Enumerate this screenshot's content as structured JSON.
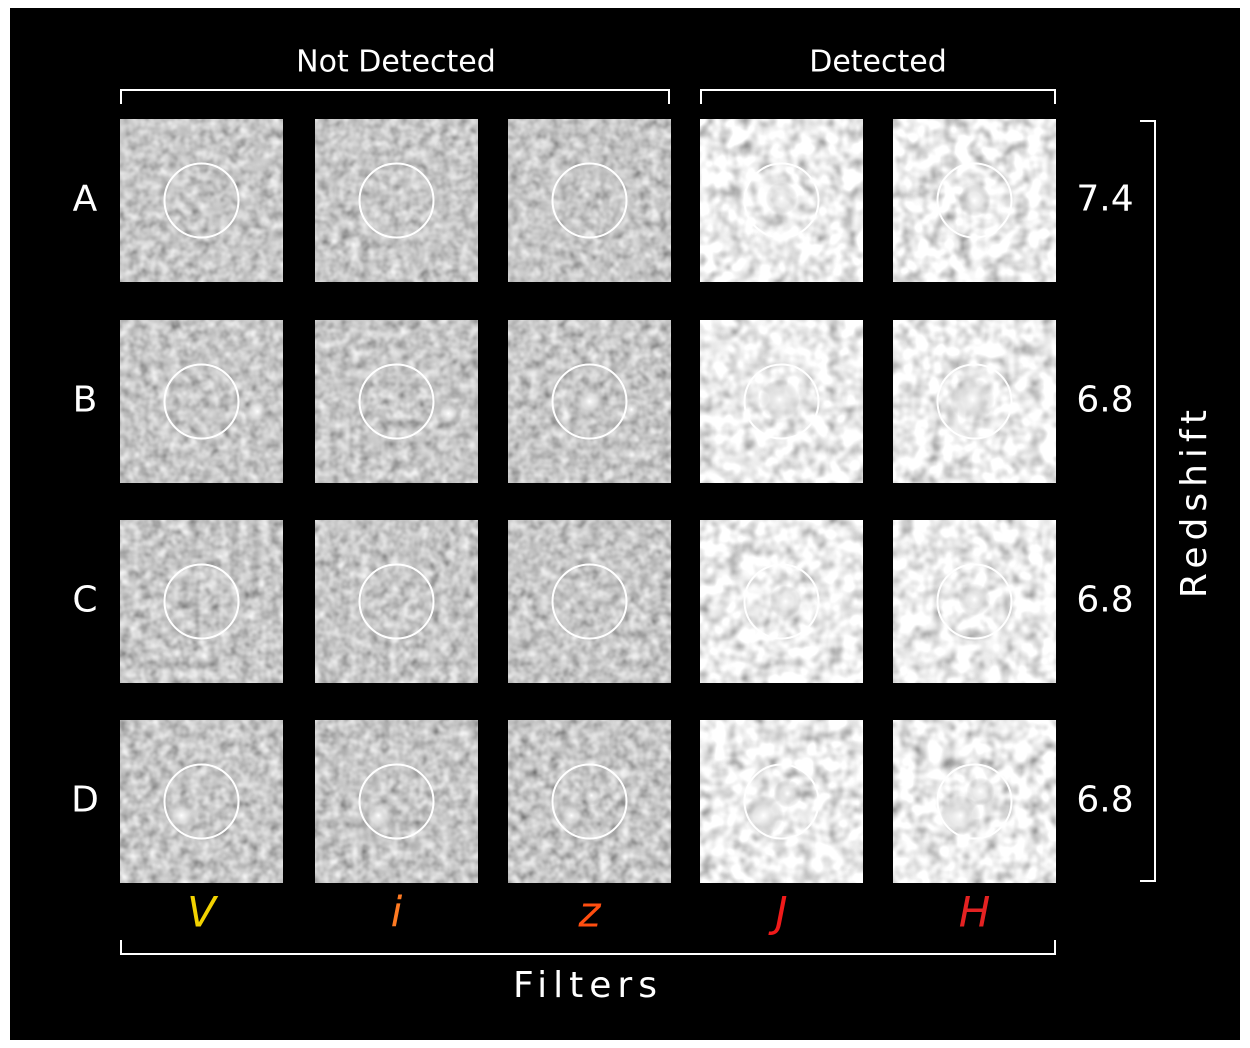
{
  "headers": {
    "left": "Not Detected",
    "right": "Detected"
  },
  "rows": [
    {
      "label": "A",
      "redshift": "7.4"
    },
    {
      "label": "B",
      "redshift": "6.8"
    },
    {
      "label": "C",
      "redshift": "6.8"
    },
    {
      "label": "D",
      "redshift": "6.8"
    }
  ],
  "filters": [
    {
      "label": "V",
      "color": "#f2d200"
    },
    {
      "label": "i",
      "color": "#ff7a22"
    },
    {
      "label": "z",
      "color": "#ff4e10"
    },
    {
      "label": "J",
      "color": "#f01a1a"
    },
    {
      "label": "H",
      "color": "#e42222"
    }
  ],
  "x_axis_label": "Filters",
  "y_axis_label": "Redshift"
}
